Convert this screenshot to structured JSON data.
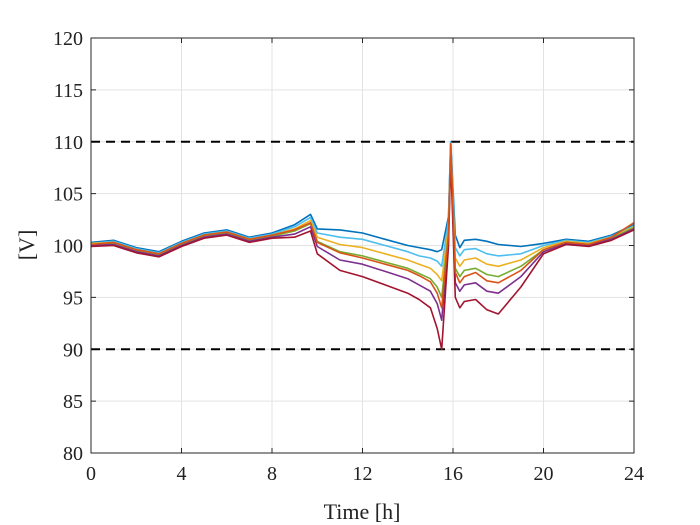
{
  "chart_data": {
    "type": "line",
    "title": "",
    "xlabel": "Time [h]",
    "ylabel": "[V]",
    "xlim": [
      0,
      24
    ],
    "ylim": [
      80,
      120
    ],
    "x_ticks": [
      0,
      4,
      8,
      12,
      16,
      20,
      24
    ],
    "y_ticks": [
      80,
      85,
      90,
      95,
      100,
      105,
      110,
      115,
      120
    ],
    "grid": true,
    "legend": "none",
    "reference_lines": [
      {
        "y": 110,
        "style": "dashed",
        "color": "#000000"
      },
      {
        "y": 90,
        "style": "dashed",
        "color": "#000000"
      }
    ],
    "series": [
      {
        "color": "#0072BD",
        "x": [
          0,
          1,
          2,
          3,
          4,
          5,
          6,
          7,
          8,
          9,
          9.7,
          10,
          11,
          12,
          13,
          14,
          14.5,
          15,
          15.3,
          15.5,
          15.8,
          15.9,
          16.1,
          16.3,
          16.5,
          17,
          17.5,
          18,
          19,
          20,
          21,
          22,
          23,
          24
        ],
        "y": [
          100.3,
          100.5,
          99.8,
          99.4,
          100.4,
          101.2,
          101.5,
          100.8,
          101.2,
          102.0,
          103.0,
          101.6,
          101.5,
          101.2,
          100.6,
          100.0,
          99.8,
          99.6,
          99.4,
          99.6,
          102.8,
          110.0,
          101.0,
          99.8,
          100.5,
          100.6,
          100.4,
          100.1,
          99.9,
          100.2,
          100.6,
          100.4,
          101.0,
          102.0
        ]
      },
      {
        "color": "#4DBEEE",
        "x": [
          0,
          1,
          2,
          3,
          4,
          5,
          6,
          7,
          8,
          9,
          9.7,
          10,
          11,
          12,
          13,
          14,
          14.5,
          15,
          15.3,
          15.5,
          15.8,
          15.9,
          16.1,
          16.3,
          16.5,
          17,
          17.5,
          18,
          19,
          20,
          21,
          22,
          23,
          24
        ],
        "y": [
          100.2,
          100.4,
          99.7,
          99.3,
          100.3,
          101.1,
          101.4,
          100.7,
          101.1,
          101.8,
          102.7,
          101.2,
          100.8,
          100.6,
          100.0,
          99.4,
          99.0,
          98.8,
          98.5,
          98.0,
          102.4,
          110.0,
          99.8,
          99.0,
          99.6,
          99.7,
          99.2,
          99.0,
          99.2,
          100.0,
          100.5,
          100.3,
          100.9,
          101.9
        ]
      },
      {
        "color": "#EDB120",
        "x": [
          0,
          1,
          2,
          3,
          4,
          5,
          6,
          7,
          8,
          9,
          9.7,
          10,
          11,
          12,
          13,
          14,
          14.5,
          15,
          15.3,
          15.5,
          15.8,
          15.9,
          16.1,
          16.3,
          16.5,
          17,
          17.5,
          18,
          19,
          20,
          21,
          22,
          23,
          24
        ],
        "y": [
          100.2,
          100.3,
          99.6,
          99.2,
          100.2,
          101.0,
          101.3,
          100.6,
          101.0,
          101.6,
          102.4,
          100.8,
          100.1,
          99.8,
          99.2,
          98.6,
          98.2,
          97.8,
          97.2,
          96.6,
          101.8,
          109.6,
          98.8,
          98.0,
          98.6,
          98.8,
          98.2,
          98.0,
          98.6,
          99.8,
          100.4,
          100.2,
          100.8,
          101.8
        ]
      },
      {
        "color": "#77AC30",
        "x": [
          0,
          1,
          2,
          3,
          4,
          5,
          6,
          7,
          8,
          9,
          9.7,
          10,
          11,
          12,
          13,
          14,
          14.5,
          15,
          15.3,
          15.5,
          15.8,
          15.9,
          16.1,
          16.3,
          16.5,
          17,
          17.5,
          18,
          19,
          20,
          21,
          22,
          23,
          24
        ],
        "y": [
          100.1,
          100.2,
          99.5,
          99.1,
          100.1,
          100.9,
          101.2,
          100.5,
          100.9,
          101.4,
          102.1,
          100.4,
          99.4,
          99.0,
          98.4,
          97.8,
          97.3,
          96.8,
          96.0,
          95.0,
          101.2,
          109.2,
          97.8,
          97.0,
          97.6,
          97.8,
          97.2,
          97.0,
          98.0,
          99.6,
          100.3,
          100.1,
          100.7,
          101.7
        ]
      },
      {
        "color": "#7E2F8E",
        "x": [
          0,
          1,
          2,
          3,
          4,
          5,
          6,
          7,
          8,
          9,
          9.7,
          10,
          11,
          12,
          13,
          14,
          14.5,
          15,
          15.3,
          15.5,
          15.8,
          15.9,
          16.1,
          16.3,
          16.5,
          17,
          17.5,
          18,
          19,
          20,
          21,
          22,
          23,
          24
        ],
        "y": [
          100.0,
          100.1,
          99.4,
          99.0,
          100.0,
          100.8,
          101.1,
          100.4,
          100.8,
          101.1,
          101.8,
          99.9,
          98.6,
          98.2,
          97.5,
          96.8,
          96.2,
          95.6,
          94.4,
          92.8,
          100.6,
          108.8,
          96.4,
          95.6,
          96.2,
          96.4,
          95.6,
          95.4,
          97.0,
          99.4,
          100.2,
          100.0,
          100.6,
          101.6
        ]
      },
      {
        "color": "#A2142F",
        "x": [
          0,
          1,
          2,
          3,
          4,
          5,
          6,
          7,
          8,
          9,
          9.7,
          10,
          11,
          12,
          13,
          14,
          14.5,
          15,
          15.3,
          15.5,
          15.8,
          15.9,
          16.1,
          16.3,
          16.5,
          17,
          17.5,
          18,
          19,
          20,
          21,
          22,
          23,
          24
        ],
        "y": [
          99.9,
          100.0,
          99.3,
          98.9,
          99.9,
          100.7,
          101.0,
          100.3,
          100.7,
          100.8,
          101.4,
          99.2,
          97.6,
          97.0,
          96.2,
          95.4,
          94.8,
          94.0,
          92.0,
          90.0,
          100.0,
          108.4,
          95.0,
          94.0,
          94.6,
          94.8,
          93.8,
          93.4,
          96.0,
          99.2,
          100.1,
          99.9,
          100.5,
          101.5
        ]
      },
      {
        "color": "#D95319",
        "x": [
          0,
          1,
          2,
          3,
          4,
          5,
          6,
          7,
          8,
          9,
          9.7,
          10,
          11,
          12,
          13,
          14,
          14.5,
          15,
          15.3,
          15.5,
          15.8,
          15.9,
          16.1,
          16.3,
          16.5,
          17,
          17.5,
          18,
          19,
          20,
          21,
          22,
          23,
          24
        ],
        "y": [
          100.1,
          100.3,
          99.6,
          99.2,
          100.2,
          101.0,
          101.3,
          100.6,
          101.0,
          101.5,
          102.2,
          100.3,
          99.3,
          98.8,
          98.2,
          97.6,
          97.1,
          96.5,
          95.4,
          94.0,
          101.0,
          109.8,
          97.4,
          96.4,
          97.0,
          97.4,
          96.6,
          96.4,
          97.6,
          99.6,
          100.3,
          100.1,
          100.8,
          102.2
        ]
      }
    ]
  }
}
